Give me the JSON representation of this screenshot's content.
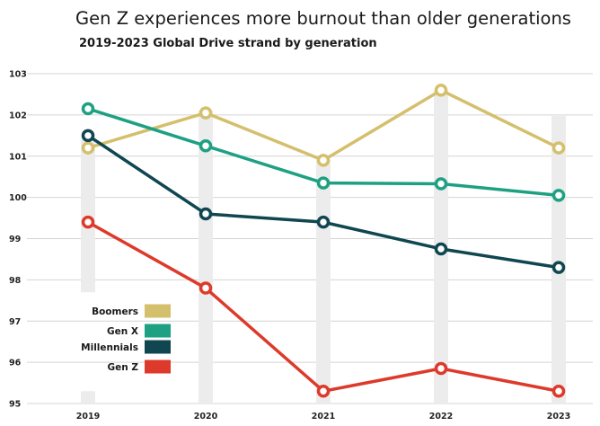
{
  "chart_data": {
    "type": "line",
    "title": "Gen Z experiences more burnout than older generations",
    "subtitle": "2019-2023 Global Drive strand by generation",
    "xlabel": "",
    "ylabel": "",
    "categories": [
      "2019",
      "2020",
      "2021",
      "2022",
      "2023"
    ],
    "ylim": [
      95,
      103
    ],
    "yticks": [
      "95",
      "96",
      "97",
      "98",
      "99",
      "100",
      "101",
      "102",
      "103"
    ],
    "grid": true,
    "legend_position": "bottom-left",
    "series": [
      {
        "name": "Boomers",
        "color": "#d4bf6c",
        "values": [
          101.2,
          102.05,
          100.9,
          102.6,
          101.2
        ]
      },
      {
        "name": "Gen X",
        "color": "#1ea083",
        "values": [
          102.15,
          101.25,
          100.35,
          100.33,
          100.05
        ]
      },
      {
        "name": "Millennials",
        "color": "#0f4650",
        "values": [
          101.5,
          99.6,
          99.4,
          98.75,
          98.3
        ]
      },
      {
        "name": "Gen Z",
        "color": "#dd3a2b",
        "values": [
          99.4,
          97.8,
          95.3,
          95.85,
          95.3
        ]
      }
    ],
    "range_bars": [
      {
        "category": "2019",
        "low": 97.7,
        "high": 101.4,
        "low2": 95.0,
        "high2": 95.3
      },
      {
        "category": "2020",
        "low": 95.0,
        "high": 102.1
      },
      {
        "category": "2021",
        "low": 95.0,
        "high": 100.9
      },
      {
        "category": "2022",
        "low": 95.0,
        "high": 102.6
      },
      {
        "category": "2023",
        "low": 95.0,
        "high": 102.0
      }
    ]
  }
}
